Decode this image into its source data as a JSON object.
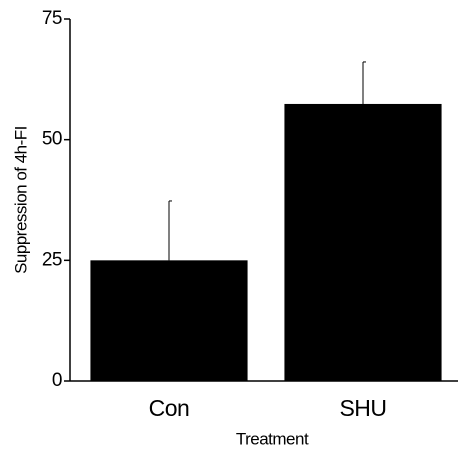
{
  "chart_data": {
    "type": "bar",
    "x_label": "Treatment",
    "y_label": "Suppression of 4h-FI",
    "categories": [
      "Con",
      "SHU"
    ],
    "values": [
      25,
      57.4
    ],
    "errors": [
      12.3,
      8.7
    ],
    "color": "#000000",
    "ylim": [
      0,
      75
    ],
    "yticks": [
      0,
      25,
      50,
      75
    ]
  }
}
